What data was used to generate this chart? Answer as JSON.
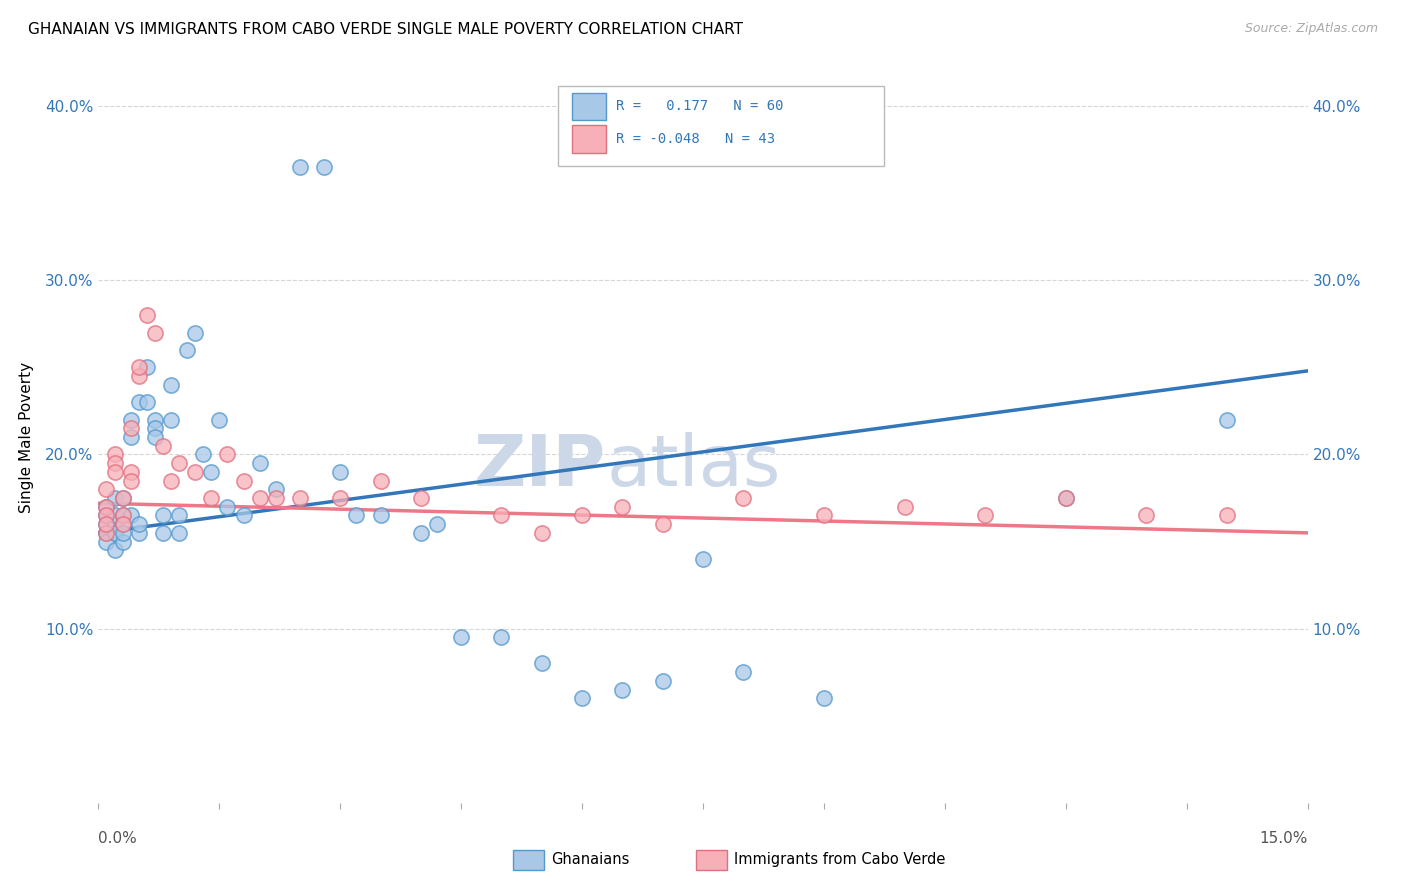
{
  "title": "GHANAIAN VS IMMIGRANTS FROM CABO VERDE SINGLE MALE POVERTY CORRELATION CHART",
  "source": "Source: ZipAtlas.com",
  "ylabel": "Single Male Poverty",
  "xlim": [
    0.0,
    0.15
  ],
  "ylim": [
    0.0,
    0.42
  ],
  "ytick_vals": [
    0.1,
    0.2,
    0.3,
    0.4
  ],
  "ytick_labels": [
    "10.0%",
    "20.0%",
    "30.0%",
    "40.0%"
  ],
  "blue_fill": "#a8c8e8",
  "blue_edge": "#5599cc",
  "pink_fill": "#f8b0b8",
  "pink_edge": "#e07080",
  "blue_line": "#3377bb",
  "pink_line": "#ee7788",
  "watermark_color": "#ccd8e8",
  "ghanaians_x": [
    0.001,
    0.001,
    0.001,
    0.001,
    0.001,
    0.002,
    0.002,
    0.002,
    0.002,
    0.002,
    0.002,
    0.003,
    0.003,
    0.003,
    0.003,
    0.003,
    0.004,
    0.004,
    0.004,
    0.005,
    0.005,
    0.005,
    0.006,
    0.006,
    0.007,
    0.007,
    0.007,
    0.008,
    0.008,
    0.009,
    0.009,
    0.01,
    0.01,
    0.011,
    0.012,
    0.013,
    0.014,
    0.015,
    0.016,
    0.018,
    0.02,
    0.022,
    0.025,
    0.028,
    0.03,
    0.032,
    0.035,
    0.04,
    0.042,
    0.045,
    0.05,
    0.055,
    0.06,
    0.065,
    0.07,
    0.075,
    0.08,
    0.09,
    0.12,
    0.14
  ],
  "ghanaians_y": [
    0.16,
    0.155,
    0.165,
    0.15,
    0.17,
    0.155,
    0.16,
    0.175,
    0.145,
    0.165,
    0.155,
    0.175,
    0.165,
    0.16,
    0.15,
    0.155,
    0.21,
    0.22,
    0.165,
    0.155,
    0.23,
    0.16,
    0.23,
    0.25,
    0.22,
    0.215,
    0.21,
    0.165,
    0.155,
    0.24,
    0.22,
    0.165,
    0.155,
    0.26,
    0.27,
    0.2,
    0.19,
    0.22,
    0.17,
    0.165,
    0.195,
    0.18,
    0.365,
    0.365,
    0.19,
    0.165,
    0.165,
    0.155,
    0.16,
    0.095,
    0.095,
    0.08,
    0.06,
    0.065,
    0.07,
    0.14,
    0.075,
    0.06,
    0.175,
    0.22
  ],
  "caboverde_x": [
    0.001,
    0.001,
    0.001,
    0.001,
    0.001,
    0.002,
    0.002,
    0.002,
    0.003,
    0.003,
    0.003,
    0.004,
    0.004,
    0.004,
    0.005,
    0.005,
    0.006,
    0.007,
    0.008,
    0.009,
    0.01,
    0.012,
    0.014,
    0.016,
    0.018,
    0.02,
    0.022,
    0.025,
    0.03,
    0.035,
    0.04,
    0.05,
    0.055,
    0.06,
    0.065,
    0.07,
    0.08,
    0.09,
    0.1,
    0.11,
    0.12,
    0.13,
    0.14
  ],
  "caboverde_y": [
    0.17,
    0.18,
    0.165,
    0.155,
    0.16,
    0.2,
    0.195,
    0.19,
    0.165,
    0.175,
    0.16,
    0.215,
    0.19,
    0.185,
    0.245,
    0.25,
    0.28,
    0.27,
    0.205,
    0.185,
    0.195,
    0.19,
    0.175,
    0.2,
    0.185,
    0.175,
    0.175,
    0.175,
    0.175,
    0.185,
    0.175,
    0.165,
    0.155,
    0.165,
    0.17,
    0.16,
    0.175,
    0.165,
    0.17,
    0.165,
    0.175,
    0.165,
    0.165
  ],
  "blue_line_x": [
    0.0,
    0.15
  ],
  "blue_line_y": [
    0.155,
    0.248
  ],
  "pink_line_x": [
    0.0,
    0.15
  ],
  "pink_line_y": [
    0.172,
    0.155
  ]
}
